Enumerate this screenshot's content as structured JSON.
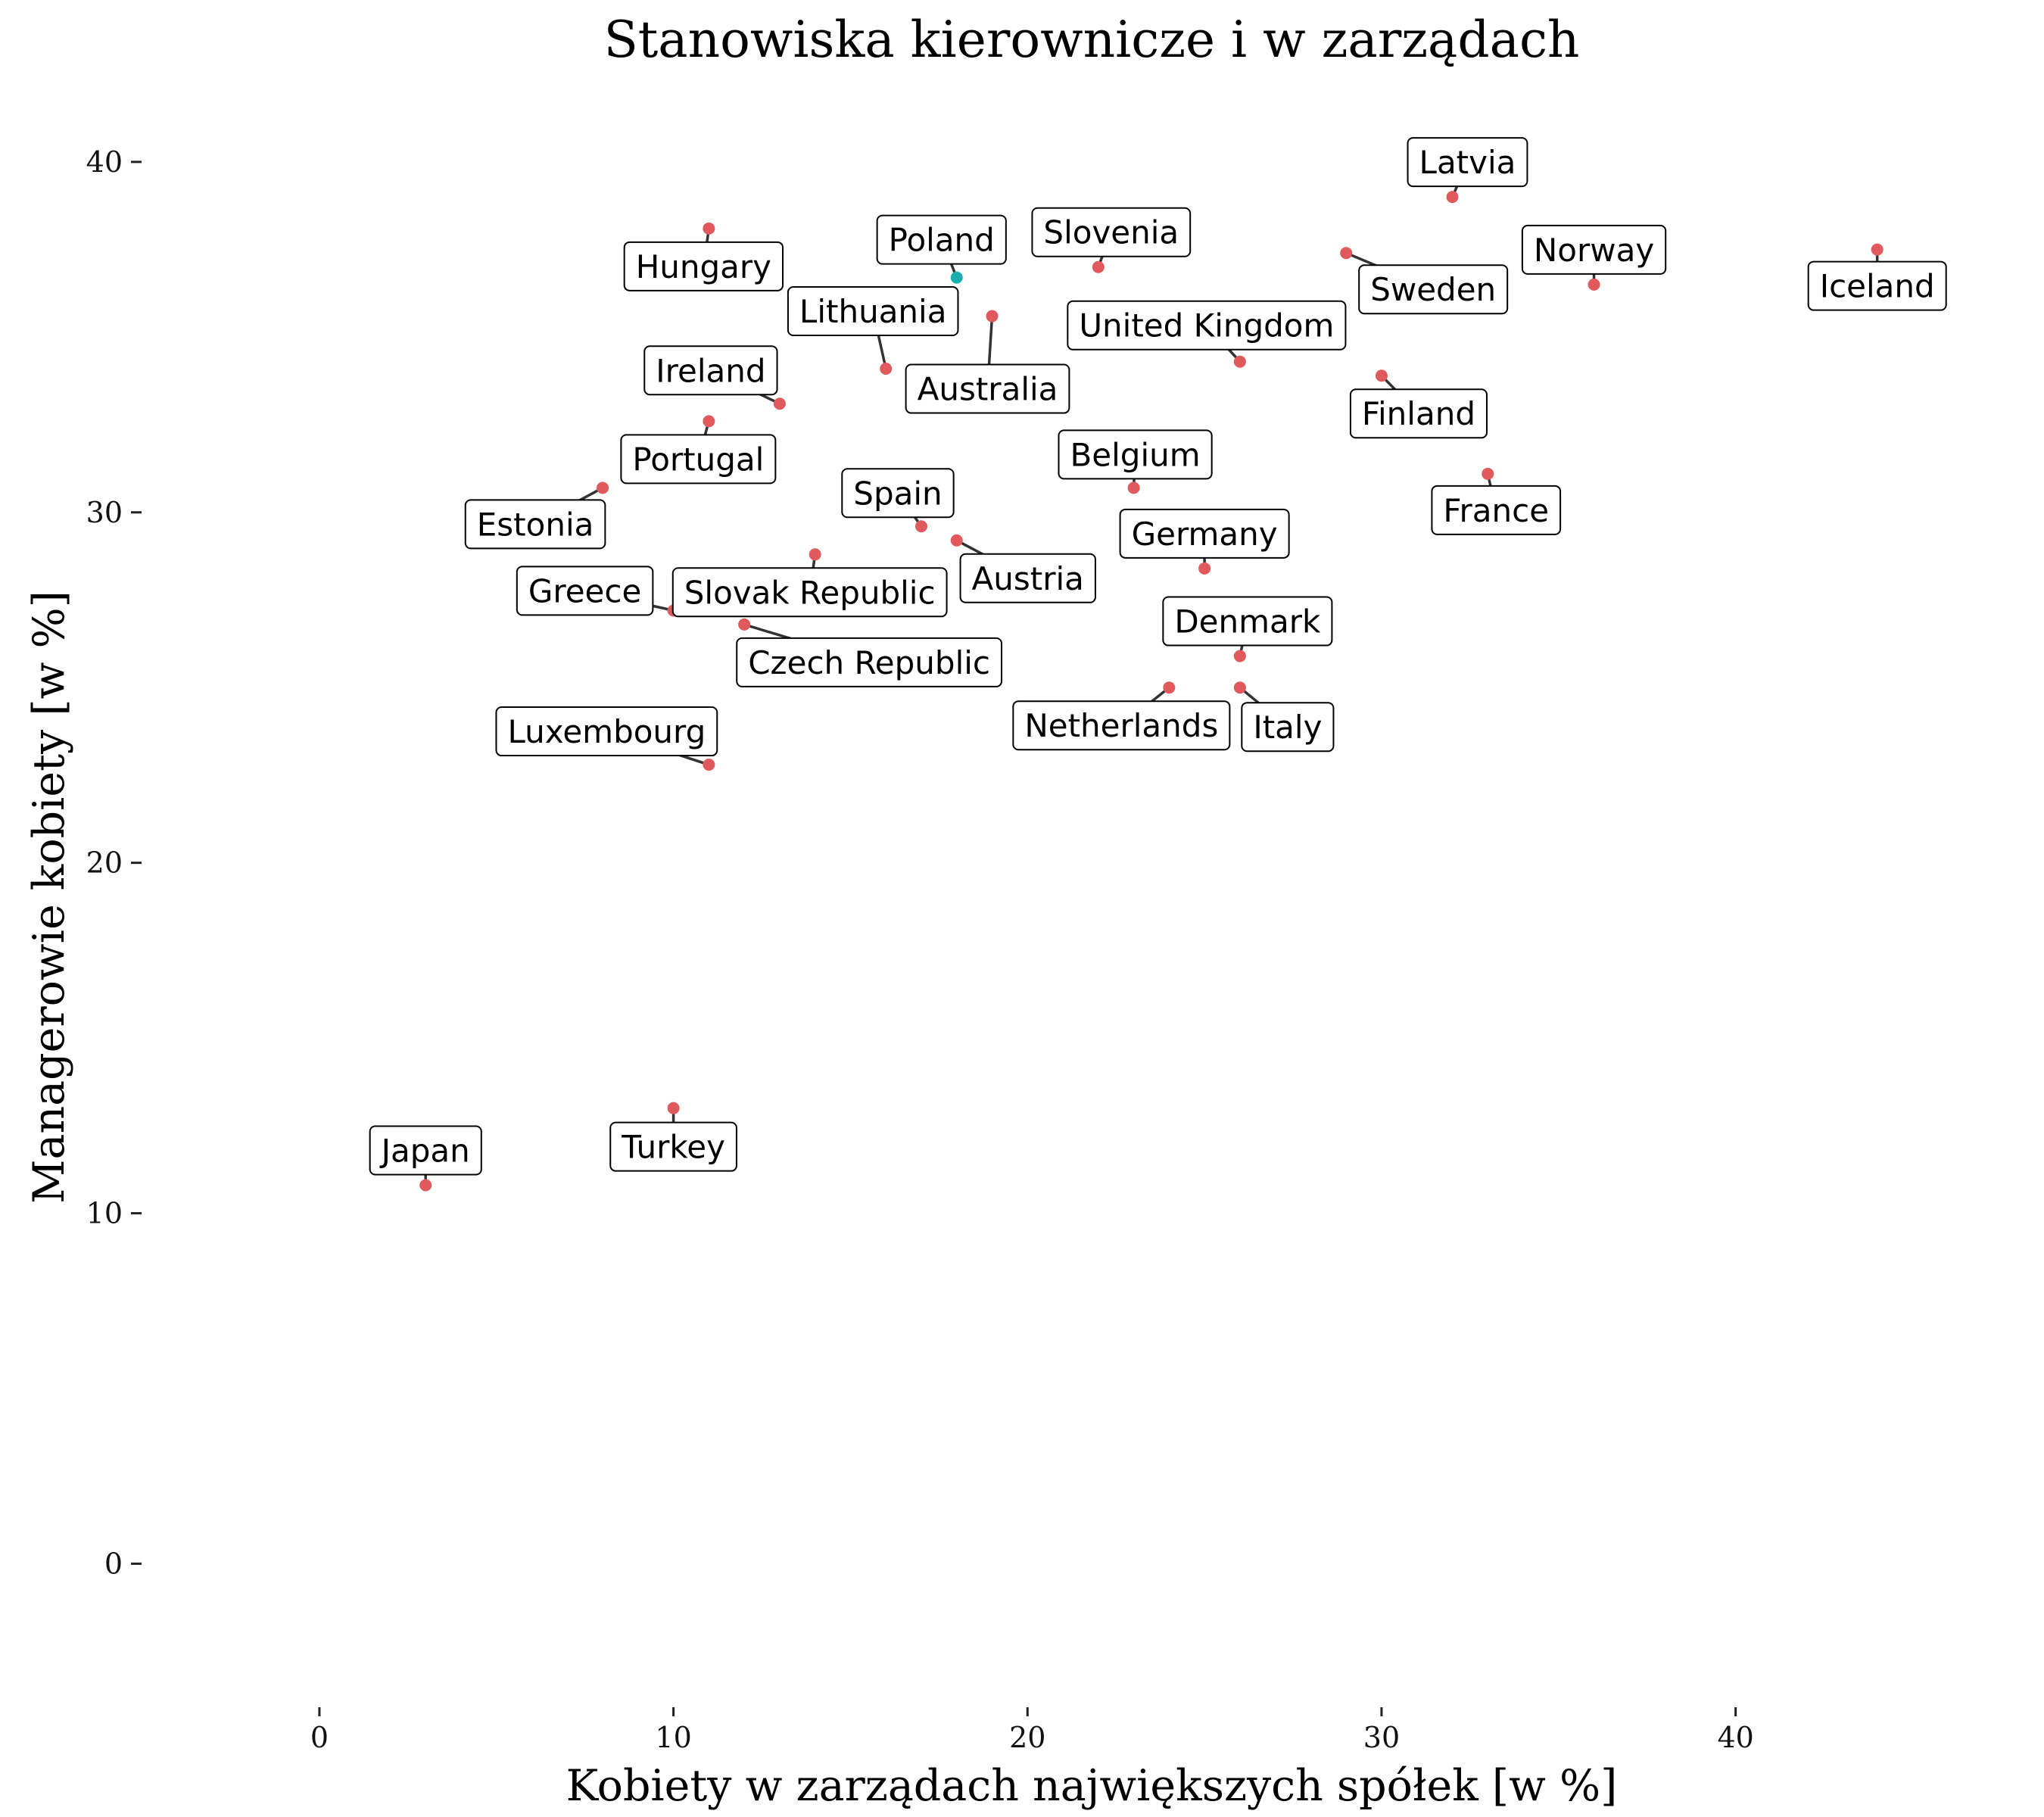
{
  "chart_data": {
    "type": "scatter",
    "title": "Stanowiska kierownicze i w zarządach",
    "xlabel": "Kobiety w zarządach największych spółek [w %]",
    "ylabel": "Managerowie kobiety [w %]",
    "xlim": [
      -2.5,
      47
    ],
    "ylim": [
      -2,
      43
    ],
    "xticks": [
      0,
      10,
      20,
      30,
      40
    ],
    "yticks": [
      0,
      10,
      20,
      30,
      40
    ],
    "grid": false,
    "colors": {
      "default": "#e0595c",
      "highlight": "#1aaeb0",
      "connector": "#333333"
    },
    "points": [
      {
        "label": "Latvia",
        "x": 32,
        "y": 39
      },
      {
        "label": "Hungary",
        "x": 11,
        "y": 38.1
      },
      {
        "label": "Poland",
        "x": 18,
        "y": 36.7,
        "highlight": true
      },
      {
        "label": "Slovenia",
        "x": 22,
        "y": 37
      },
      {
        "label": "Sweden",
        "x": 29,
        "y": 37.4
      },
      {
        "label": "Norway",
        "x": 36,
        "y": 36.5
      },
      {
        "label": "Iceland",
        "x": 44,
        "y": 37.5
      },
      {
        "label": "Lithuania",
        "x": 16,
        "y": 34.1
      },
      {
        "label": "Australia",
        "x": 19,
        "y": 35.6
      },
      {
        "label": "United Kingdom",
        "x": 26,
        "y": 34.3
      },
      {
        "label": "Ireland",
        "x": 13,
        "y": 33.1
      },
      {
        "label": "Finland",
        "x": 30,
        "y": 33.9
      },
      {
        "label": "Portugal",
        "x": 11,
        "y": 32.6
      },
      {
        "label": "Belgium",
        "x": 23,
        "y": 30.7
      },
      {
        "label": "Estonia",
        "x": 8,
        "y": 30.7
      },
      {
        "label": "France",
        "x": 33,
        "y": 31.1
      },
      {
        "label": "Spain",
        "x": 17,
        "y": 29.6
      },
      {
        "label": "Austria",
        "x": 18,
        "y": 29.2
      },
      {
        "label": "Germany",
        "x": 25,
        "y": 28.4
      },
      {
        "label": "Slovak Republic",
        "x": 14,
        "y": 28.8
      },
      {
        "label": "Greece",
        "x": 10,
        "y": 27.2
      },
      {
        "label": "Czech Republic",
        "x": 12,
        "y": 26.8
      },
      {
        "label": "Denmark",
        "x": 26,
        "y": 25.9
      },
      {
        "label": "Netherlands",
        "x": 24,
        "y": 25
      },
      {
        "label": "Italy",
        "x": 26,
        "y": 25
      },
      {
        "label": "Luxembourg",
        "x": 11,
        "y": 22.8
      },
      {
        "label": "Turkey",
        "x": 10,
        "y": 13
      },
      {
        "label": "Japan",
        "x": 3,
        "y": 10.8
      }
    ]
  }
}
